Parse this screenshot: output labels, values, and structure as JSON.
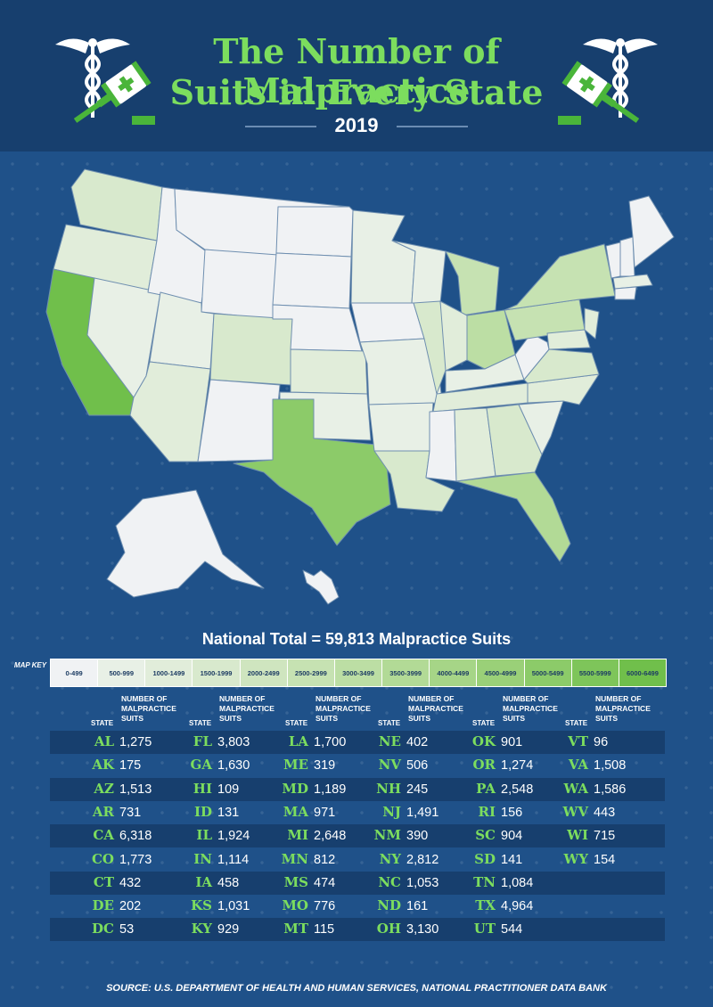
{
  "title_line1": "The Number of Malpractice",
  "title_line2": "Suits in Every State",
  "year": "2019",
  "national_total": "National Total = 59,813 Malpractice Suits",
  "map_key_label": "MAP KEY",
  "legend_bins": [
    {
      "label": "0-499",
      "color": "#f0f2f4"
    },
    {
      "label": "500-999",
      "color": "#e8f0e6"
    },
    {
      "label": "1000-1499",
      "color": "#e1edda"
    },
    {
      "label": "1500-1999",
      "color": "#d8e9cd"
    },
    {
      "label": "2000-2499",
      "color": "#cfe5bf"
    },
    {
      "label": "2500-2999",
      "color": "#c6e2b2"
    },
    {
      "label": "3000-3499",
      "color": "#bcdea4"
    },
    {
      "label": "3500-3999",
      "color": "#b2da96"
    },
    {
      "label": "4000-4499",
      "color": "#a6d587"
    },
    {
      "label": "4500-4999",
      "color": "#9ad078"
    },
    {
      "label": "5000-5499",
      "color": "#8ccb69"
    },
    {
      "label": "5500-5999",
      "color": "#7ec55a"
    },
    {
      "label": "6000-6499",
      "color": "#70bf4b"
    }
  ],
  "column_header_state": "STATE",
  "column_header_number": "NUMBER OF MALPRACTICE SUITS",
  "table_columns": [
    [
      [
        "AL",
        "1,275"
      ],
      [
        "AK",
        "175"
      ],
      [
        "AZ",
        "1,513"
      ],
      [
        "AR",
        "731"
      ],
      [
        "CA",
        "6,318"
      ],
      [
        "CO",
        "1,773"
      ],
      [
        "CT",
        "432"
      ],
      [
        "DE",
        "202"
      ],
      [
        "DC",
        "53"
      ]
    ],
    [
      [
        "FL",
        "3,803"
      ],
      [
        "GA",
        "1,630"
      ],
      [
        "HI",
        "109"
      ],
      [
        "ID",
        "131"
      ],
      [
        "IL",
        "1,924"
      ],
      [
        "IN",
        "1,114"
      ],
      [
        "IA",
        "458"
      ],
      [
        "KS",
        "1,031"
      ],
      [
        "KY",
        "929"
      ]
    ],
    [
      [
        "LA",
        "1,700"
      ],
      [
        "ME",
        "319"
      ],
      [
        "MD",
        "1,189"
      ],
      [
        "MA",
        "971"
      ],
      [
        "MI",
        "2,648"
      ],
      [
        "MN",
        "812"
      ],
      [
        "MS",
        "474"
      ],
      [
        "MO",
        "776"
      ],
      [
        "MT",
        "115"
      ]
    ],
    [
      [
        "NE",
        "402"
      ],
      [
        "NV",
        "506"
      ],
      [
        "NH",
        "245"
      ],
      [
        "NJ",
        "1,491"
      ],
      [
        "NM",
        "390"
      ],
      [
        "NY",
        "2,812"
      ],
      [
        "NC",
        "1,053"
      ],
      [
        "ND",
        "161"
      ],
      [
        "OH",
        "3,130"
      ]
    ],
    [
      [
        "OK",
        "901"
      ],
      [
        "OR",
        "1,274"
      ],
      [
        "PA",
        "2,548"
      ],
      [
        "RI",
        "156"
      ],
      [
        "SC",
        "904"
      ],
      [
        "SD",
        "141"
      ],
      [
        "TN",
        "1,084"
      ],
      [
        "TX",
        "4,964"
      ],
      [
        "UT",
        "544"
      ]
    ],
    [
      [
        "VT",
        "96"
      ],
      [
        "VA",
        "1,508"
      ],
      [
        "WA",
        "1,586"
      ],
      [
        "WV",
        "443"
      ],
      [
        "WI",
        "715"
      ],
      [
        "WY",
        "154"
      ]
    ]
  ],
  "source": "SOURCE:  U.S. DEPARTMENT OF HEALTH AND HUMAN SERVICES, NATIONAL PRACTITIONER DATA BANK",
  "colors": {
    "background": "#1f5189",
    "header": "#173f6e",
    "accent_green": "#7cdd5e",
    "dark_row": "#173f6e"
  },
  "icons": [
    "caduceus-icon",
    "gavel-icon"
  ]
}
